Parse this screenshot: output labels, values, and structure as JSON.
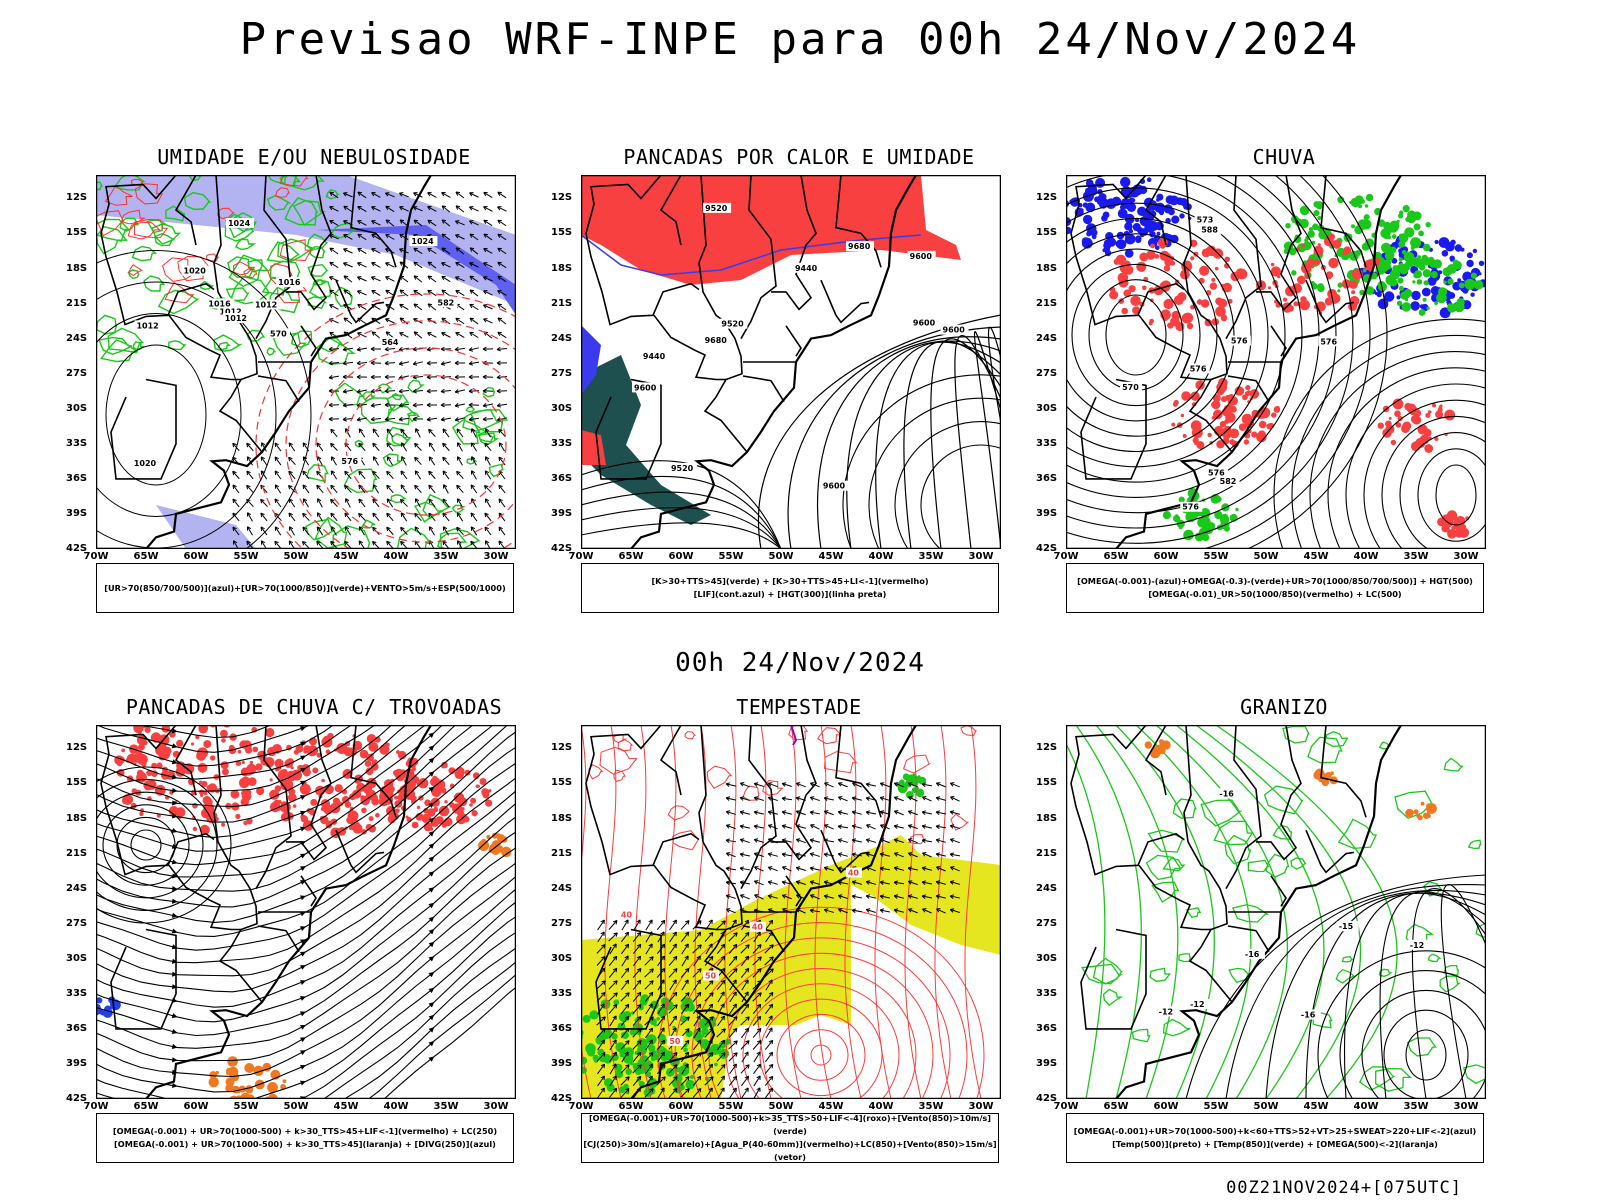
{
  "title": "Previsao WRF-INPE  para 00h 24/Nov/2024",
  "subtitle": "00h 24/Nov/2024",
  "footer": "00Z21NOV2024+[075UTC]",
  "axes": {
    "lat_labels": [
      "12S",
      "15S",
      "18S",
      "21S",
      "24S",
      "27S",
      "30S",
      "33S",
      "36S",
      "39S",
      "42S"
    ],
    "lon_labels": [
      "70W",
      "65W",
      "60W",
      "55W",
      "50W",
      "45W",
      "40W",
      "35W",
      "30W"
    ]
  },
  "panels": [
    {
      "title": "UMIDADE E/OU NEBULOSIDADE",
      "legend": [
        "[UR>70(850/700/500)](azul)+[UR>70(1000/850)](verde)+VENTO>5m/s+ESP(500/1000)"
      ],
      "contour_labels": [
        "1012",
        "1012",
        "1012",
        "1016",
        "1012",
        "1020",
        "1024",
        "1024",
        "1020",
        "1016",
        "576",
        "570",
        "564",
        "582"
      ]
    },
    {
      "title": "PANCADAS POR CALOR E UMIDADE",
      "legend": [
        "[K>30+TTS>45](verde) + [K>30+TTS>45+LI<-1](vermelho)",
        "[LIF](cont.azul) + [HGT(300)](linha preta)"
      ],
      "contour_labels": [
        "9680",
        "9600",
        "9680",
        "9600",
        "9600",
        "9600",
        "9520",
        "9600",
        "9520",
        "9440",
        "9520",
        "9440"
      ]
    },
    {
      "title": "CHUVA",
      "legend": [
        "[OMEGA(-0.001)-(azul)+OMEGA(-0.3)-(verde)+UR>70(1000/850/700/500)] + HGT(500)",
        "[OMEGA(-0.01)_UR>50(1000/850)(vermelho) + LC(500)"
      ],
      "contour_labels": [
        "576",
        "576",
        "582",
        "588",
        "576",
        "570",
        "576",
        "573",
        "576"
      ]
    },
    {
      "title": "PANCADAS DE CHUVA C/ TROVOADAS",
      "legend": [
        "[OMEGA(-0.001) + UR>70(1000-500) + k>30_TTS>45+LIF<-1](vermelho) + LC(250)",
        "[OMEGA(-0.001) + UR>70(1000-500) + k>30_TTS>45](laranja) + [DIVG(250)](azul)"
      ]
    },
    {
      "title": "TEMPESTADE",
      "legend": [
        "[OMEGA(-0.001)+UR>70(1000-500)+k>35_TTS>50+LIF<-4](roxo)+[Vento(850)>10m/s](verde)",
        "[CJ(250)>30m/s](amarelo)+[Agua_P(40-60mm)](vermelho)+LC(850)+[Vento(850)>15m/s](vetor)"
      ],
      "contour_labels": [
        "50",
        "40",
        "40",
        "50",
        "40"
      ]
    },
    {
      "title": "GRANIZO",
      "legend": [
        "[OMEGA(-0.001)+UR>70(1000-500)+k<60+TTS>52+VT>25+SWEAT>220+LIF<-2](azul)",
        "[Temp(500)](preto) + [Temp(850)](verde) + [OMEGA(500)<-2](laranja)"
      ],
      "contour_labels": [
        "-12",
        "-15",
        "-16",
        "-16",
        "-12",
        "-16",
        "-12"
      ]
    }
  ]
}
